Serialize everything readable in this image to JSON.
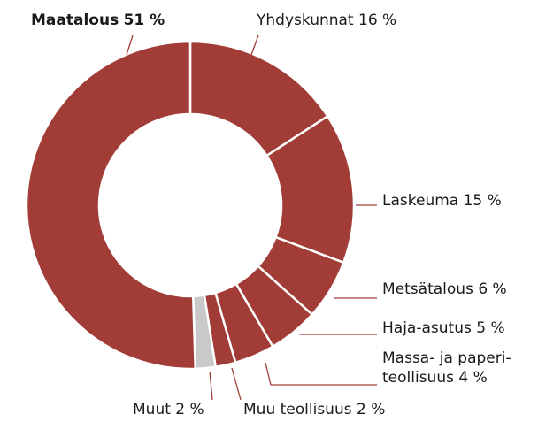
{
  "chart_data": {
    "type": "donut",
    "categories": [
      "Yhdyskunnat",
      "Laskeuma",
      "Metsätalous",
      "Haja-asutus",
      [
        "Massa- ja paperi-",
        "teollisuus"
      ],
      "Muu teollisuus",
      "Muut",
      "Maatalous"
    ],
    "values": [
      16,
      15,
      6,
      5,
      4,
      2,
      2,
      51
    ],
    "value_labels": [
      "16 %",
      "15 %",
      "6 %",
      "5 %",
      "4 %",
      "2 %",
      "2 %",
      "51 %"
    ],
    "colors": [
      "#a13d36",
      "#a13d36",
      "#a13d36",
      "#a13d36",
      "#a13d36",
      "#a13d36",
      "#c9c9c9",
      "#a13d36"
    ],
    "bold": [
      false,
      false,
      false,
      false,
      false,
      false,
      false,
      true
    ]
  }
}
